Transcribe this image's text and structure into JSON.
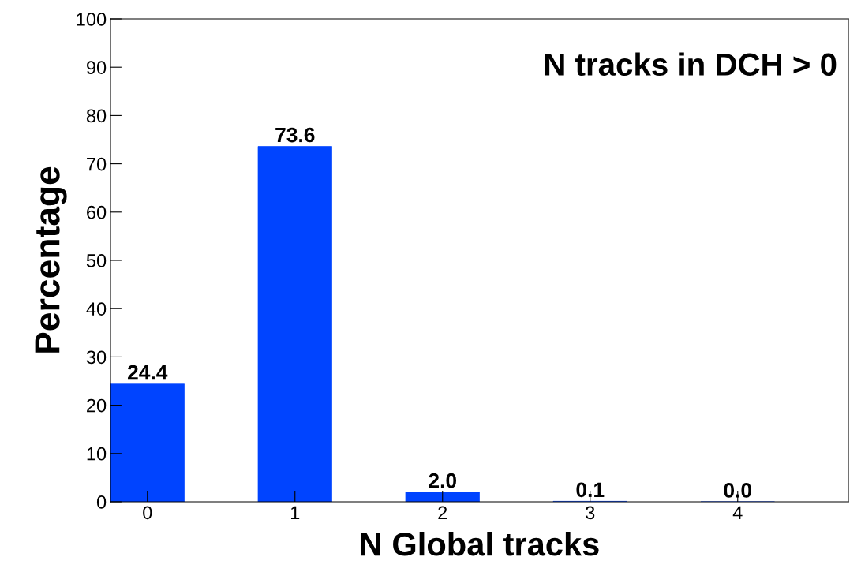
{
  "chart_data": {
    "type": "bar",
    "xlabel": "N Global tracks",
    "ylabel": "Percentage",
    "categories": [
      "0",
      "1",
      "2",
      "3",
      "4"
    ],
    "values": [
      24.4,
      73.6,
      2.0,
      0.1,
      0.0
    ],
    "color": "#0044ff",
    "ylim": [
      0,
      100
    ],
    "yticks": [
      0,
      10,
      20,
      30,
      40,
      50,
      60,
      70,
      80,
      90,
      100
    ],
    "value_labels": [
      "24.4",
      "73.6",
      "2.0",
      "0.1",
      "0.0"
    ],
    "grid": false,
    "legend": false,
    "annotations": [
      "N tracks in DCH > 0"
    ]
  }
}
